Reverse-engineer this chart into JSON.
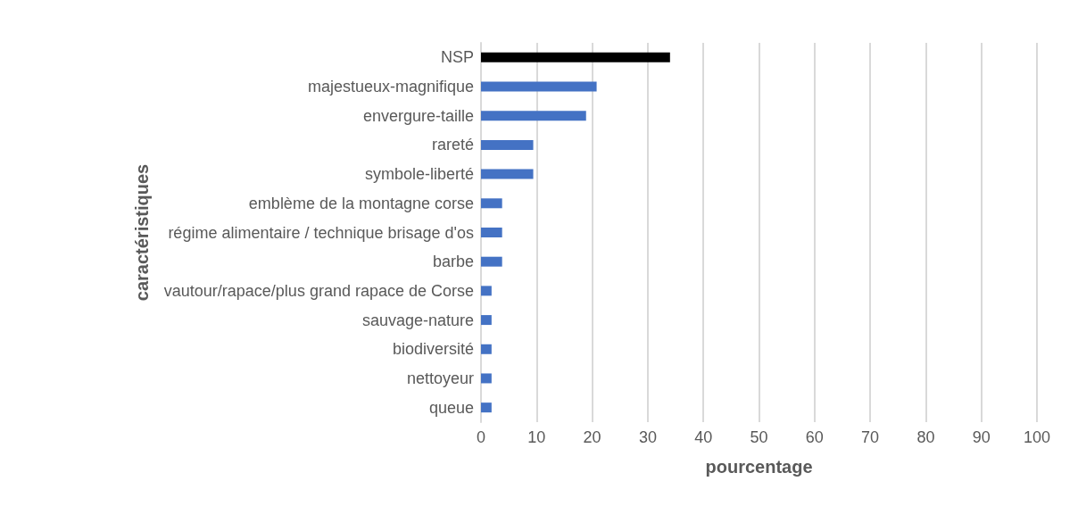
{
  "chart_data": {
    "type": "bar",
    "orientation": "horizontal",
    "xlabel": "pourcentage",
    "ylabel": "caractéristiques",
    "categories": [
      "NSP",
      "majestueux-magnifique",
      "envergure-taille",
      "rareté",
      "symbole-liberté",
      "emblème de la montagne corse",
      "régime alimentaire / technique brisage d'os",
      "barbe",
      "vautour/rapace/plus grand rapace de Corse",
      "sauvage-nature",
      "biodiversité",
      "nettoyeur",
      "queue"
    ],
    "values": [
      34,
      20.8,
      18.9,
      9.4,
      9.4,
      3.8,
      3.8,
      3.8,
      1.9,
      1.9,
      1.9,
      1.9,
      1.9
    ],
    "colors": [
      "#000000",
      "#4472c4",
      "#4472c4",
      "#4472c4",
      "#4472c4",
      "#4472c4",
      "#4472c4",
      "#4472c4",
      "#4472c4",
      "#4472c4",
      "#4472c4",
      "#4472c4",
      "#4472c4"
    ],
    "xlim": [
      0,
      100
    ],
    "xticks": [
      0,
      10,
      20,
      30,
      40,
      50,
      60,
      70,
      80,
      90,
      100
    ],
    "grid": "x"
  }
}
